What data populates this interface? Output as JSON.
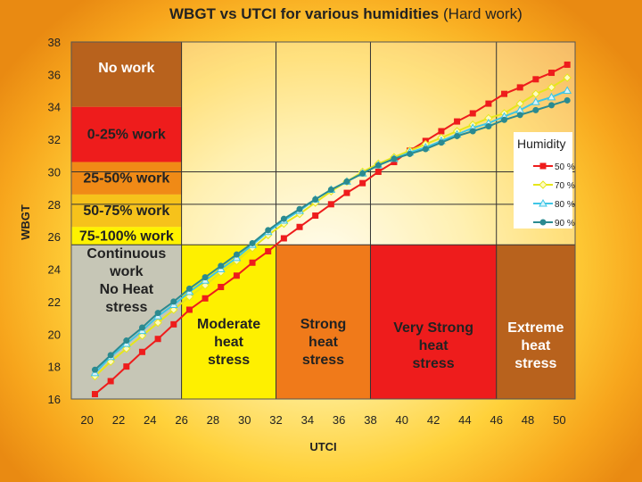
{
  "chart_data": {
    "type": "line",
    "title": "WBGT vs UTCI for various humidities",
    "subtitle": "(Hard work)",
    "xlabel": "UTCI",
    "ylabel": "WBGT",
    "xlim": [
      19,
      51
    ],
    "ylim": [
      16,
      38
    ],
    "x_ticks": [
      20,
      22,
      24,
      26,
      28,
      30,
      32,
      34,
      36,
      38,
      40,
      42,
      44,
      46,
      48,
      50
    ],
    "y_ticks": [
      16,
      18,
      20,
      22,
      24,
      26,
      28,
      30,
      32,
      34,
      36,
      38
    ],
    "grid": "vertical lines at 26, 32, 38, 46; horizontal lines at 28, 30",
    "wbgt_zones": [
      {
        "label": "No work",
        "from": 34,
        "to": 38,
        "color": "#b8621d"
      },
      {
        "label": "0-25% work",
        "from": 30.6,
        "to": 34,
        "color": "#ee1c1c"
      },
      {
        "label": "25-50% work",
        "from": 28.6,
        "to": 30.6,
        "color": "#f08a16"
      },
      {
        "label": "50-75% work",
        "from": 26.6,
        "to": 28.6,
        "color": "#f6c21b"
      },
      {
        "label": "75-100% work",
        "from": 25.5,
        "to": 26.6,
        "color": "#fef200"
      }
    ],
    "utci_zones": [
      {
        "label": "Continuous work\nNo Heat stress",
        "from": 19,
        "to": 26,
        "color": "#c6c6b6"
      },
      {
        "label": "Moderate heat stress",
        "from": 26,
        "to": 32,
        "color": "#fef000"
      },
      {
        "label": "Strong heat stress",
        "from": 32,
        "to": 38,
        "color": "#f07a1a"
      },
      {
        "label": "Very Strong heat stress",
        "from": 38,
        "to": 46,
        "color": "#ee1c1c"
      },
      {
        "label": "Extreme heat stress",
        "from": 46,
        "to": 51,
        "color": "#b8621d"
      }
    ],
    "legend": {
      "title": "Humidity",
      "position": "right"
    },
    "x": [
      20.5,
      21.5,
      22.5,
      23.5,
      24.5,
      25.5,
      26.5,
      27.5,
      28.5,
      29.5,
      30.5,
      31.5,
      32.5,
      33.5,
      34.5,
      35.5,
      36.5,
      37.5,
      38.5,
      39.5,
      40.5,
      41.5,
      42.5,
      43.5,
      44.5,
      45.5,
      46.5,
      47.5,
      48.5,
      49.5,
      50.5
    ],
    "series": [
      {
        "name": "50 %",
        "color": "#ee1c1c",
        "marker": "square",
        "values": [
          16.3,
          17.1,
          18.0,
          18.9,
          19.7,
          20.6,
          21.5,
          22.2,
          22.9,
          23.6,
          24.4,
          25.1,
          25.9,
          26.6,
          27.3,
          28.0,
          28.7,
          29.3,
          30.0,
          30.6,
          31.3,
          31.9,
          32.5,
          33.1,
          33.6,
          34.2,
          34.8,
          35.2,
          35.7,
          36.1,
          36.6
        ]
      },
      {
        "name": "70 %",
        "color": "#e6e61a",
        "marker": "diamond",
        "values": [
          17.4,
          18.3,
          19.1,
          19.9,
          20.7,
          21.5,
          22.3,
          23.0,
          23.8,
          24.5,
          25.3,
          26.1,
          26.8,
          27.4,
          28.1,
          28.8,
          29.4,
          30.0,
          30.5,
          30.9,
          31.3,
          31.7,
          32.1,
          32.5,
          32.9,
          33.3,
          33.6,
          34.2,
          34.8,
          35.2,
          35.8
        ]
      },
      {
        "name": "80 %",
        "color": "#3ec6e6",
        "marker": "triangle",
        "values": [
          17.6,
          18.6,
          19.4,
          20.2,
          21.1,
          21.8,
          22.6,
          23.3,
          24.0,
          24.7,
          25.5,
          26.3,
          27.0,
          27.6,
          28.3,
          28.9,
          29.4,
          29.9,
          30.4,
          30.8,
          31.2,
          31.5,
          31.9,
          32.3,
          32.7,
          33.0,
          33.4,
          33.8,
          34.3,
          34.6,
          35.0
        ]
      },
      {
        "name": "90 %",
        "color": "#2b8a90",
        "marker": "circle",
        "values": [
          17.8,
          18.7,
          19.6,
          20.4,
          21.3,
          22.0,
          22.8,
          23.5,
          24.2,
          24.9,
          25.6,
          26.4,
          27.1,
          27.7,
          28.3,
          28.9,
          29.4,
          29.9,
          30.4,
          30.8,
          31.1,
          31.4,
          31.8,
          32.2,
          32.5,
          32.8,
          33.2,
          33.5,
          33.8,
          34.1,
          34.4
        ]
      }
    ]
  }
}
